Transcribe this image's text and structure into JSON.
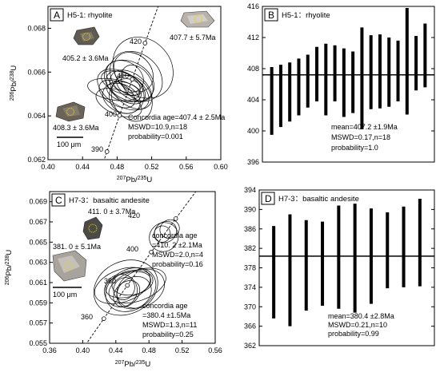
{
  "chart_data": [
    {
      "type": "scatter",
      "panel": "A",
      "title": "H5-1: rhyolite",
      "xlabel": "207Pb/235U",
      "ylabel": "206Pb/238U",
      "xlim": [
        0.4,
        0.6
      ],
      "ylim": [
        0.062,
        0.069
      ],
      "x_ticks": [
        "0.40",
        "0.44",
        "0.48",
        "0.52",
        "0.56",
        "0.60"
      ],
      "y_ticks": [
        "0.062",
        "0.064",
        "0.066",
        "0.068"
      ],
      "concordia_ages": [
        "390",
        "400",
        "410",
        "420"
      ],
      "concordia": {
        "age_start": 385,
        "age_end": 432,
        "marked_ages": [
          390,
          400,
          410,
          420
        ]
      },
      "ellipses": [
        {
          "x": 0.487,
          "y": 0.0652,
          "rx": 0.019,
          "ry": 0.0013,
          "angle": 58
        },
        {
          "x": 0.494,
          "y": 0.0656,
          "rx": 0.022,
          "ry": 0.0012,
          "angle": 62
        },
        {
          "x": 0.49,
          "y": 0.0653,
          "rx": 0.015,
          "ry": 0.001,
          "angle": 55
        },
        {
          "x": 0.502,
          "y": 0.0658,
          "rx": 0.026,
          "ry": 0.0013,
          "angle": 50
        },
        {
          "x": 0.485,
          "y": 0.0648,
          "rx": 0.016,
          "ry": 0.0009,
          "angle": 64
        },
        {
          "x": 0.496,
          "y": 0.0652,
          "rx": 0.018,
          "ry": 0.0011,
          "angle": 50
        },
        {
          "x": 0.48,
          "y": 0.065,
          "rx": 0.013,
          "ry": 0.0009,
          "angle": 60
        },
        {
          "x": 0.499,
          "y": 0.066,
          "rx": 0.02,
          "ry": 0.001,
          "angle": 45
        },
        {
          "x": 0.491,
          "y": 0.0649,
          "rx": 0.02,
          "ry": 0.0008,
          "angle": 40
        },
        {
          "x": 0.486,
          "y": 0.0655,
          "rx": 0.012,
          "ry": 0.001,
          "angle": 70
        },
        {
          "x": 0.503,
          "y": 0.0655,
          "rx": 0.016,
          "ry": 0.0009,
          "angle": 35
        },
        {
          "x": 0.488,
          "y": 0.0651,
          "rx": 0.011,
          "ry": 0.0008,
          "angle": 75
        },
        {
          "x": 0.51,
          "y": 0.0662,
          "rx": 0.032,
          "ry": 0.0015,
          "angle": 42
        },
        {
          "x": 0.493,
          "y": 0.0654,
          "rx": 0.01,
          "ry": 0.0006,
          "angle": 55
        },
        {
          "x": 0.482,
          "y": 0.0646,
          "rx": 0.014,
          "ry": 0.0011,
          "angle": 68
        },
        {
          "x": 0.497,
          "y": 0.0648,
          "rx": 0.022,
          "ry": 0.0011,
          "angle": 30
        },
        {
          "x": 0.489,
          "y": 0.0658,
          "rx": 0.017,
          "ry": 0.0009,
          "angle": 60
        },
        {
          "x": 0.476,
          "y": 0.0652,
          "rx": 0.012,
          "ry": 0.0012,
          "angle": 80
        }
      ],
      "annotations": [
        {
          "id": "concordia_age",
          "text": "Concordia age=407.4 ± 2.5Ma"
        },
        {
          "id": "mswd",
          "text": "MSWD=10.9,n=18"
        },
        {
          "id": "prob",
          "text": "probability=0.001"
        },
        {
          "id": "zircon1",
          "text": "405.2 ± 3.6Ma"
        },
        {
          "id": "zircon2",
          "text": "407.7 ± 5.7Ma"
        },
        {
          "id": "zircon3",
          "text": "408.3 ± 3.6Ma"
        },
        {
          "id": "scale",
          "text": "100 μm"
        }
      ]
    },
    {
      "type": "bar",
      "panel": "B",
      "title": "H5-1：rhyolite",
      "ylim": [
        396,
        416
      ],
      "y_ticks": [
        "396",
        "400",
        "404",
        "408",
        "412",
        "416"
      ],
      "bars": [
        {
          "low": 399.5,
          "high": 408.2
        },
        {
          "low": 400.5,
          "high": 408.5
        },
        {
          "low": 401.2,
          "high": 408.8
        },
        {
          "low": 402.0,
          "high": 409.3
        },
        {
          "low": 403.0,
          "high": 409.8
        },
        {
          "low": 403.8,
          "high": 410.8
        },
        {
          "low": 402.0,
          "high": 411.2
        },
        {
          "low": 403.8,
          "high": 411.0
        },
        {
          "low": 401.8,
          "high": 410.6
        },
        {
          "low": 402.3,
          "high": 410.2
        },
        {
          "low": 400.2,
          "high": 413.3
        },
        {
          "low": 402.8,
          "high": 412.3
        },
        {
          "low": 402.9,
          "high": 412.4
        },
        {
          "low": 403.1,
          "high": 412.0
        },
        {
          "low": 403.8,
          "high": 411.6
        },
        {
          "low": 402.1,
          "high": 415.8
        },
        {
          "low": 405.2,
          "high": 412.2
        },
        {
          "low": 405.6,
          "high": 413.8
        }
      ],
      "mean": 407.2,
      "annotations": [
        {
          "id": "mean",
          "text": "mean=407.2 ±1.9Ma"
        },
        {
          "id": "mswd",
          "text": "MSWD=0.17,n=18"
        },
        {
          "id": "prob",
          "text": "probability=1.0"
        }
      ]
    },
    {
      "type": "scatter",
      "panel": "C",
      "title": "H7-3：basaltic andesite",
      "xlabel": "207Pb/235U",
      "ylabel": "206Pb/238U",
      "xlim": [
        0.36,
        0.56
      ],
      "ylim": [
        0.055,
        0.07
      ],
      "x_ticks": [
        "0.36",
        "0.40",
        "0.44",
        "0.48",
        "0.52",
        "0.56"
      ],
      "y_ticks": [
        "0.055",
        "0.057",
        "0.059",
        "0.061",
        "0.063",
        "0.065",
        "0.067",
        "0.069"
      ],
      "concordia_ages": [
        "360",
        "380",
        "400",
        "420"
      ],
      "concordia": {
        "age_start": 340,
        "age_end": 440,
        "marked_ages": [
          340,
          360,
          380,
          400,
          420,
          440
        ]
      },
      "ellipses": [
        {
          "x": 0.498,
          "y": 0.0655,
          "rx": 0.018,
          "ry": 0.0014,
          "angle": 45
        },
        {
          "x": 0.5,
          "y": 0.066,
          "rx": 0.014,
          "ry": 0.001,
          "angle": 38
        },
        {
          "x": 0.496,
          "y": 0.0658,
          "rx": 0.01,
          "ry": 0.0008,
          "angle": 50
        },
        {
          "x": 0.505,
          "y": 0.0663,
          "rx": 0.012,
          "ry": 0.0009,
          "angle": 30
        },
        {
          "x": 0.452,
          "y": 0.0605,
          "rx": 0.04,
          "ry": 0.0026,
          "angle": 25
        },
        {
          "x": 0.458,
          "y": 0.0603,
          "rx": 0.032,
          "ry": 0.002,
          "angle": 30
        },
        {
          "x": 0.448,
          "y": 0.0607,
          "rx": 0.035,
          "ry": 0.0016,
          "angle": 20
        },
        {
          "x": 0.462,
          "y": 0.06,
          "rx": 0.022,
          "ry": 0.0015,
          "angle": 35
        },
        {
          "x": 0.455,
          "y": 0.0608,
          "rx": 0.028,
          "ry": 0.0012,
          "angle": 15
        },
        {
          "x": 0.47,
          "y": 0.0604,
          "rx": 0.03,
          "ry": 0.0018,
          "angle": 25
        },
        {
          "x": 0.446,
          "y": 0.0602,
          "rx": 0.02,
          "ry": 0.0016,
          "angle": 40
        },
        {
          "x": 0.46,
          "y": 0.061,
          "rx": 0.025,
          "ry": 0.0012,
          "angle": 10
        },
        {
          "x": 0.453,
          "y": 0.0599,
          "rx": 0.018,
          "ry": 0.0011,
          "angle": 45
        },
        {
          "x": 0.466,
          "y": 0.0607,
          "rx": 0.036,
          "ry": 0.0015,
          "angle": 20
        },
        {
          "x": 0.45,
          "y": 0.0604,
          "rx": 0.014,
          "ry": 0.001,
          "angle": 55
        }
      ],
      "annotations": [
        {
          "id": "age1",
          "text": "concordia age"
        },
        {
          "id": "age1b",
          "text": "=410. 2 ±2.1Ma"
        },
        {
          "id": "mswd1",
          "text": "MSWD=2.0,n=4"
        },
        {
          "id": "prob1",
          "text": "probability=0.16"
        },
        {
          "id": "age2",
          "text": "concordia age"
        },
        {
          "id": "age2b",
          "text": "=380.4 ±1.5Ma"
        },
        {
          "id": "mswd2",
          "text": "MSWD=1.3,n=11"
        },
        {
          "id": "prob2",
          "text": "probability=0.25"
        },
        {
          "id": "zircon1",
          "text": "411. 0 ± 3.7Ma"
        },
        {
          "id": "zircon2",
          "text": "381. 0 ± 5.1Ma"
        },
        {
          "id": "scale",
          "text": "100 μm"
        }
      ]
    },
    {
      "type": "bar",
      "panel": "D",
      "title": "H7-3：basaltic andesite",
      "ylim": [
        362,
        394
      ],
      "y_ticks": [
        "362",
        "366",
        "370",
        "374",
        "378",
        "382",
        "386",
        "390",
        "394"
      ],
      "bars": [
        {
          "low": 367.6,
          "high": 386.6
        },
        {
          "low": 366.0,
          "high": 389.0
        },
        {
          "low": 369.2,
          "high": 387.8
        },
        {
          "low": 370.2,
          "high": 387.5
        },
        {
          "low": 369.6,
          "high": 390.8
        },
        {
          "low": 368.8,
          "high": 391.2
        },
        {
          "low": 370.6,
          "high": 390.2
        },
        {
          "low": 373.8,
          "high": 389.4
        },
        {
          "low": 374.0,
          "high": 390.6
        },
        {
          "low": 374.2,
          "high": 392.2
        }
      ],
      "mean": 380.4,
      "annotations": [
        {
          "id": "mean",
          "text": "mean=380.4 ±2.8Ma"
        },
        {
          "id": "mswd",
          "text": "MSWD=0.21,n=10"
        },
        {
          "id": "prob",
          "text": "probability=0.99"
        }
      ]
    }
  ],
  "colors": {
    "ink": "#000000",
    "zircon_dark": "#6b6358",
    "zircon_light": "#b9b2aa",
    "spot": "#e8d400"
  }
}
